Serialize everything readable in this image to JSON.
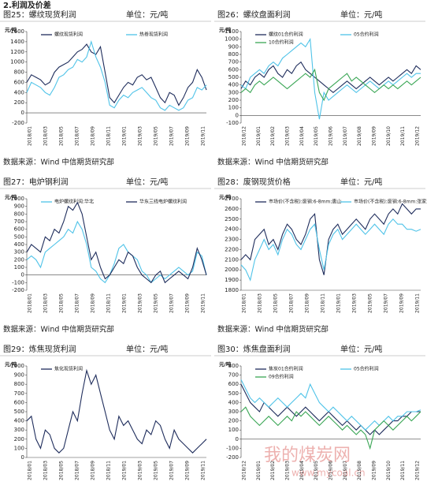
{
  "header": "2.利润及价差",
  "watermark": {
    "name": "我的煤炭网",
    "url": "www.mycoal.cn"
  },
  "chart_data": [
    {
      "type": "line",
      "title": "图25：螺纹现货利润",
      "unit": "单位：元/吨",
      "y_label": "元/吨",
      "source": "数据来源：Wind 中信期货研究部",
      "x_labels": [
        "2018/01",
        "2018/03",
        "2018/05",
        "2018/07",
        "2018/09",
        "2018/11",
        "2019/01",
        "2019/03",
        "2019/05",
        "2019/07",
        "2019/09",
        "2019/11"
      ],
      "ylim": [
        -200,
        1600
      ],
      "yticks": [
        -200,
        0,
        200,
        400,
        600,
        800,
        1000,
        1200,
        1400,
        1600
      ],
      "series": [
        {
          "name": "螺纹现货利润",
          "color": "#1f2d5c",
          "values": [
            600,
            750,
            700,
            650,
            550,
            600,
            800,
            900,
            950,
            1000,
            1100,
            1200,
            1250,
            1350,
            1200,
            1150,
            1300,
            800,
            300,
            200,
            350,
            500,
            600,
            550,
            700,
            750,
            650,
            700,
            500,
            300,
            200,
            400,
            350,
            150,
            300,
            500,
            600,
            850,
            700,
            450
          ]
        },
        {
          "name": "热卷现货利润",
          "color": "#4fc3e8",
          "values": [
            400,
            600,
            550,
            500,
            400,
            350,
            500,
            700,
            750,
            850,
            900,
            1050,
            1000,
            1100,
            1400,
            1100,
            900,
            600,
            150,
            100,
            250,
            350,
            300,
            400,
            450,
            500,
            400,
            300,
            250,
            100,
            50,
            150,
            100,
            50,
            100,
            250,
            300,
            500,
            450,
            550
          ]
        }
      ]
    },
    {
      "type": "line",
      "title": "图26：螺纹盘面利润",
      "unit": "单位：元/吨",
      "y_label": "元/吨",
      "source": "数据来源：Wind 中信期货研究部",
      "x_labels": [
        "2018/12",
        "2019/01",
        "2019/02",
        "2019/03",
        "2019/04",
        "2019/05",
        "2019/06",
        "2019/07",
        "2019/08",
        "2019/09",
        "2019/10",
        "2019/11",
        "2019/12"
      ],
      "ylim": [
        -100,
        1100
      ],
      "yticks": [
        -100,
        0,
        100,
        200,
        300,
        400,
        500,
        600,
        700,
        800,
        900,
        1000,
        1100
      ],
      "series": [
        {
          "name": "螺纹01合约利润",
          "color": "#1f2d5c",
          "values": [
            350,
            450,
            400,
            500,
            550,
            500,
            600,
            650,
            550,
            500,
            600,
            550,
            650,
            700,
            600,
            550,
            500,
            450,
            400,
            350,
            300,
            350,
            400,
            450,
            400,
            350,
            400,
            450,
            500,
            450,
            400,
            450,
            500,
            450,
            500,
            550,
            600,
            550,
            650,
            600
          ]
        },
        {
          "name": "05合约利润",
          "color": "#4fc3e8",
          "values": [
            400,
            350,
            500,
            550,
            600,
            550,
            650,
            700,
            650,
            750,
            800,
            850,
            900,
            950,
            900,
            1000,
            300,
            -50,
            300,
            200,
            250,
            300,
            350,
            400,
            350,
            300,
            350,
            400,
            450,
            400,
            350,
            400,
            450,
            400,
            450,
            500,
            550,
            500,
            550,
            550
          ]
        },
        {
          "name": "10合约利润",
          "color": "#3aa655",
          "values": [
            300,
            350,
            300,
            400,
            450,
            400,
            450,
            500,
            450,
            400,
            350,
            400,
            450,
            500,
            550,
            500,
            600,
            300,
            200,
            350,
            400,
            450,
            500,
            550,
            450,
            500,
            450,
            400,
            350,
            300,
            350,
            400,
            350,
            400,
            350,
            400,
            450,
            400,
            450,
            500
          ]
        }
      ]
    },
    {
      "type": "line",
      "title": "图27：电炉钢利润",
      "unit": "单位：元/吨",
      "y_label": "元/吨",
      "source": "数据来源：Wind 中信期货研究部",
      "x_labels": [
        "2018/01",
        "2018/03",
        "2018/05",
        "2018/07",
        "2018/09",
        "2018/11",
        "2019/01",
        "2019/03",
        "2019/05",
        "2019/07",
        "2019/09",
        "2019/11"
      ],
      "ylim": [
        -200,
        1000
      ],
      "yticks": [
        -200,
        -100,
        0,
        100,
        200,
        300,
        400,
        500,
        600,
        700,
        800,
        900,
        1000
      ],
      "series": [
        {
          "name": "电炉螺纹利润:华北",
          "color": "#4fc3e8",
          "values": [
            200,
            250,
            200,
            100,
            300,
            350,
            400,
            450,
            500,
            600,
            550,
            700,
            600,
            400,
            100,
            50,
            -50,
            -100,
            0,
            150,
            350,
            400,
            300,
            250,
            200,
            50,
            0,
            -100,
            -50,
            0,
            -50,
            0,
            50,
            100,
            50,
            0,
            50,
            300,
            250,
            0
          ]
        },
        {
          "name": "华东三线电炉螺纹利润",
          "color": "#1f2d5c",
          "values": [
            300,
            400,
            350,
            300,
            500,
            450,
            600,
            550,
            700,
            900,
            850,
            950,
            800,
            500,
            200,
            300,
            100,
            -50,
            0,
            100,
            200,
            150,
            300,
            250,
            100,
            0,
            -50,
            -100,
            0,
            50,
            -100,
            -50,
            0,
            50,
            0,
            -50,
            100,
            350,
            200,
            0
          ]
        }
      ]
    },
    {
      "type": "line",
      "title": "图28：废钢现货价格",
      "unit": "单位：元/吨",
      "y_label": "元/吨",
      "source": "数据来源：Wind 中信期货研究部",
      "x_labels": [
        "2018/01",
        "2018/03",
        "2018/05",
        "2018/07",
        "2018/09",
        "2018/11",
        "2019/01",
        "2019/03",
        "2019/05",
        "2019/07",
        "2019/09",
        "2019/11"
      ],
      "ylim": [
        1800,
        2700
      ],
      "yticks": [
        1800,
        1900,
        2000,
        2100,
        2200,
        2300,
        2400,
        2500,
        2600,
        2700
      ],
      "series": [
        {
          "name": "市场价(不含税):废钢:6-8mm:唐山",
          "color": "#1f2d5c",
          "values": [
            2100,
            2150,
            2100,
            2300,
            2350,
            2400,
            2250,
            2300,
            2200,
            2350,
            2450,
            2400,
            2300,
            2250,
            2350,
            2500,
            2550,
            2100,
            1950,
            2300,
            2400,
            2450,
            2350,
            2400,
            2450,
            2500,
            2450,
            2400,
            2500,
            2550,
            2500,
            2450,
            2550,
            2600,
            2550,
            2650,
            2600,
            2550,
            2600,
            2600
          ]
        },
        {
          "name": "市场价(不含税):废钢:6-8mm:张家港",
          "color": "#4fc3e8",
          "values": [
            2050,
            2000,
            1900,
            2100,
            2200,
            2300,
            2200,
            2250,
            2150,
            2300,
            2400,
            2350,
            2250,
            2200,
            2300,
            2400,
            2450,
            2200,
            2000,
            2250,
            2350,
            2400,
            2300,
            2350,
            2400,
            2450,
            2400,
            2350,
            2400,
            2450,
            2400,
            2350,
            2450,
            2500,
            2450,
            2450,
            2400,
            2400,
            2380,
            2400
          ]
        }
      ]
    },
    {
      "type": "line",
      "title": "图29：炼焦现货利润",
      "unit": "单位：元/吨",
      "y_label": "元/吨",
      "x_labels": [
        "2018/01",
        "2018/03",
        "2018/05",
        "2018/07",
        "2018/09",
        "2018/11",
        "2019/01",
        "2019/03",
        "2019/05",
        "2019/07",
        "2019/09",
        "2019/11"
      ],
      "ylim": [
        0,
        1000
      ],
      "yticks": [
        0,
        100,
        200,
        300,
        400,
        500,
        600,
        700,
        800,
        900,
        1000
      ],
      "series": [
        {
          "name": "焦化现货利润",
          "color": "#1f2d5c",
          "values": [
            400,
            450,
            200,
            100,
            300,
            250,
            100,
            50,
            100,
            300,
            500,
            400,
            700,
            950,
            800,
            900,
            700,
            500,
            300,
            200,
            450,
            350,
            400,
            300,
            200,
            150,
            300,
            250,
            400,
            350,
            200,
            100,
            300,
            200,
            150,
            100,
            50,
            100,
            150,
            200
          ]
        }
      ]
    },
    {
      "type": "line",
      "title": "图30：炼焦盘面利润",
      "unit": "单位：元/吨",
      "y_label": "元/吨",
      "x_labels": [
        "2018/12",
        "2019/01",
        "2019/02",
        "2019/03",
        "2019/04",
        "2019/05",
        "2019/06",
        "2019/07",
        "2019/08",
        "2019/09",
        "2019/10",
        "2019/11",
        "2019/12"
      ],
      "ylim": [
        -200,
        800
      ],
      "yticks": [
        -200,
        -100,
        0,
        100,
        200,
        300,
        400,
        500,
        600,
        700,
        800
      ],
      "series": [
        {
          "name": "焦炭01合约利润",
          "color": "#1f2d5c",
          "values": [
            600,
            500,
            400,
            350,
            300,
            400,
            350,
            300,
            250,
            300,
            350,
            300,
            250,
            300,
            350,
            300,
            250,
            200,
            250,
            300,
            250,
            200,
            150,
            200,
            150,
            100,
            150,
            100,
            50,
            100,
            50,
            100,
            150,
            200,
            200,
            250,
            250,
            300,
            300,
            300
          ]
        },
        {
          "name": "05合约利润",
          "color": "#4fc3e8",
          "values": [
            650,
            550,
            450,
            400,
            450,
            400,
            350,
            400,
            450,
            400,
            350,
            400,
            450,
            500,
            450,
            600,
            500,
            400,
            350,
            300,
            350,
            300,
            250,
            200,
            250,
            200,
            150,
            100,
            150,
            200,
            150,
            200,
            250,
            200,
            250,
            250,
            300,
            300,
            300,
            320
          ]
        },
        {
          "name": "09合约利润",
          "color": "#3aa655",
          "values": [
            300,
            350,
            250,
            200,
            150,
            200,
            250,
            200,
            150,
            200,
            250,
            200,
            300,
            250,
            300,
            250,
            200,
            150,
            200,
            250,
            200,
            150,
            100,
            150,
            100,
            50,
            100,
            50,
            -100,
            100,
            150,
            200,
            150,
            100,
            150,
            200,
            250,
            200,
            250,
            300
          ]
        }
      ]
    }
  ]
}
